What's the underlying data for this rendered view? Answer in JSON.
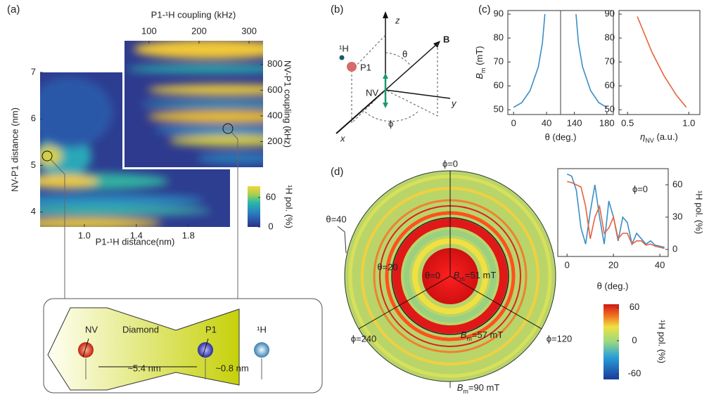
{
  "panels": {
    "a": "(a)",
    "b": "(b)",
    "c": "(c)",
    "d": "(d)"
  },
  "diagram_b": {
    "z": "z",
    "B": "B",
    "H": "¹H",
    "theta": "θ",
    "P1": "P1",
    "NV": "NV",
    "y": "y",
    "phi": "ϕ",
    "x": "x"
  },
  "diagram_a": {
    "NV": "NV",
    "diamond": "Diamond",
    "P1": "P1",
    "H": "¹H",
    "d1": "~5.4 nm",
    "d2": "~0.8 nm"
  },
  "polar": {
    "phi0": "ϕ=0",
    "theta40": "θ=40",
    "theta20": "θ=20",
    "theta0": "θ=0",
    "bm51": {
      "symbol": "B",
      "sub": "m",
      "unit": "=51 mT"
    },
    "bm57": {
      "symbol": "B",
      "sub": "m",
      "unit": "=57 mT"
    },
    "bm90": {
      "symbol": "B",
      "sub": "m",
      "unit": "=90 mT"
    },
    "phi240": "ϕ=240",
    "phi120": "ϕ=120"
  },
  "chart_data": [
    {
      "type": "heatmap",
      "colormap": "viridis",
      "xlabel": "P1-¹H distance(nm)",
      "ylabel": "NV-P1 distance (nm)",
      "xlim": [
        0.66,
        2.12
      ],
      "xticks": [
        {
          "value": 1,
          "label": "1.0"
        },
        1.4,
        1.8
      ],
      "ylim": [
        3.68,
        7.0
      ],
      "yticks": [
        4,
        5,
        6,
        7
      ]
    },
    {
      "type": "heatmap",
      "colormap": "viridis",
      "xlabel": "P1-¹H coupling (kHz)",
      "ylabel": "NV-P1 coupling (kHz)",
      "xlim": [
        51,
        328
      ],
      "xticks": [
        100,
        200,
        300
      ],
      "ylim": [
        0,
        985
      ],
      "yticks": [
        200,
        400,
        600,
        800
      ]
    },
    {
      "type": "colorbar",
      "colormap": "viridis",
      "ylabel": "¹H pol. (%)",
      "ylim": [
        0,
        83
      ],
      "yticks": [
        0,
        60
      ]
    },
    {
      "type": "line",
      "ylabel": {
        "symbol": "B",
        "sub": "m",
        "unit": " (mT)"
      },
      "xlabel": "θ (deg.)",
      "xlim": [
        -7,
        57
      ],
      "xticks": [
        0,
        40
      ],
      "ylim": [
        48,
        91.5
      ],
      "yticks": [
        50,
        60,
        70,
        80,
        90
      ],
      "x": [
        0,
        10,
        20,
        30,
        35,
        38
      ],
      "series": [
        {
          "color": "#3a8fc4",
          "values": [
            51,
            53,
            58,
            68,
            78,
            90
          ]
        }
      ]
    },
    {
      "type": "line",
      "xlim": [
        123,
        188
      ],
      "xticks": [
        140,
        180
      ],
      "ylim": [
        48,
        91.5
      ],
      "x": [
        142,
        145,
        150,
        160,
        170,
        180
      ],
      "series": [
        {
          "color": "#3a8fc4",
          "values": [
            90,
            78,
            68,
            58,
            53,
            51
          ]
        }
      ]
    },
    {
      "type": "line",
      "xlabel": {
        "symbol": "η",
        "sub": "NV",
        "unit": " (a.u.)"
      },
      "xlim": [
        0.43,
        1.09
      ],
      "xticks": [
        0.5,
        {
          "value": 1,
          "label": "1.0"
        }
      ],
      "ylim": [
        48,
        91.5
      ],
      "yticks": [
        50,
        60,
        70,
        80,
        90
      ],
      "x": [
        0.58,
        0.7,
        0.8,
        0.9,
        0.98
      ],
      "series": [
        {
          "color": "#e8623a",
          "values": [
            89,
            74,
            64,
            56,
            51
          ]
        }
      ]
    },
    {
      "type": "line",
      "xlabel": "θ (deg.)",
      "ylabel": "¹H pol. (%)",
      "annotation": "ϕ=0",
      "xlim": [
        -4,
        43.6
      ],
      "xticks": [
        0,
        20,
        40
      ],
      "ylim": [
        -6.5,
        75
      ],
      "yticks": [
        0,
        30,
        60
      ],
      "x": [
        0,
        2,
        4,
        6,
        8,
        10,
        12,
        14,
        16,
        18,
        20,
        22,
        24,
        26,
        28,
        30,
        32,
        34,
        36,
        38,
        40,
        42
      ],
      "series": [
        {
          "color": "#3a8fc4",
          "values": [
            70,
            68,
            55,
            20,
            5,
            35,
            60,
            30,
            5,
            45,
            30,
            8,
            30,
            25,
            5,
            15,
            10,
            5,
            8,
            4,
            3,
            2
          ]
        },
        {
          "color": "#e8623a",
          "values": [
            63,
            62,
            60,
            58,
            40,
            10,
            30,
            40,
            15,
            20,
            30,
            10,
            15,
            15,
            5,
            8,
            8,
            4,
            5,
            3,
            2,
            1
          ]
        }
      ]
    },
    {
      "type": "colorbar",
      "colormap": "jet",
      "ylabel": "¹H pol. (%)",
      "ylim": [
        -70,
        66
      ],
      "yticks": [
        -60,
        0,
        60
      ]
    }
  ]
}
